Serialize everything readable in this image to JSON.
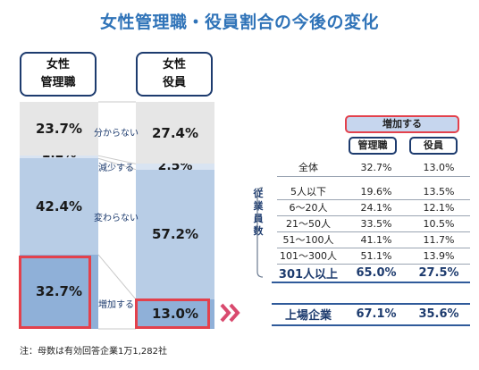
{
  "title": "女性管理職・役員割合の今後の変化",
  "headers": {
    "left_line1": "女性",
    "left_line2": "管理職",
    "right_line1": "女性",
    "right_line2": "役員"
  },
  "middle_labels": [
    "分からない",
    "減少する",
    "変わらない",
    "増加する"
  ],
  "table": {
    "banner": "増加する",
    "col1": "管理職",
    "col2": "役員",
    "group_label": "従業員数",
    "rows": [
      {
        "label": "全体",
        "v1": "32.7%",
        "v2": "13.0%",
        "bold": false
      },
      {
        "label": "5人以下",
        "v1": "19.6%",
        "v2": "13.5%",
        "bold": false
      },
      {
        "label": "6～20人",
        "v1": "24.1%",
        "v2": "12.1%",
        "bold": false
      },
      {
        "label": "21～50人",
        "v1": "33.5%",
        "v2": "10.5%",
        "bold": false
      },
      {
        "label": "51～100人",
        "v1": "41.1%",
        "v2": "11.7%",
        "bold": false
      },
      {
        "label": "101～300人",
        "v1": "51.1%",
        "v2": "13.9%",
        "bold": false
      },
      {
        "label": "301人以上",
        "v1": "65.0%",
        "v2": "27.5%",
        "bold": true
      },
      {
        "label": "上場企業",
        "v1": "67.1%",
        "v2": "35.6%",
        "bold": true
      }
    ]
  },
  "note": "注：母数は有効回答企業1万1,282社",
  "colors": {
    "unknown": "#e6e6e6",
    "decrease": "#d9e4f2",
    "unchanged": "#b8cde6",
    "increase": "#8fb0d8",
    "highlight": "#e3414c",
    "title": "#2f73b8"
  },
  "chart_data": {
    "type": "bar",
    "stacked": true,
    "categories": [
      "女性管理職",
      "女性役員"
    ],
    "series": [
      {
        "name": "増加する",
        "values": [
          32.7,
          13.0
        ],
        "labels": [
          "32.7%",
          "13.0%"
        ]
      },
      {
        "name": "変わらない",
        "values": [
          42.4,
          57.2
        ],
        "labels": [
          "42.4%",
          "57.2%"
        ]
      },
      {
        "name": "減少する",
        "values": [
          1.2,
          2.5
        ],
        "labels": [
          "1.2%",
          "2.5%"
        ]
      },
      {
        "name": "分からない",
        "values": [
          23.7,
          27.4
        ],
        "labels": [
          "23.7%",
          "27.4%"
        ]
      }
    ],
    "ylim": [
      0,
      100
    ]
  }
}
